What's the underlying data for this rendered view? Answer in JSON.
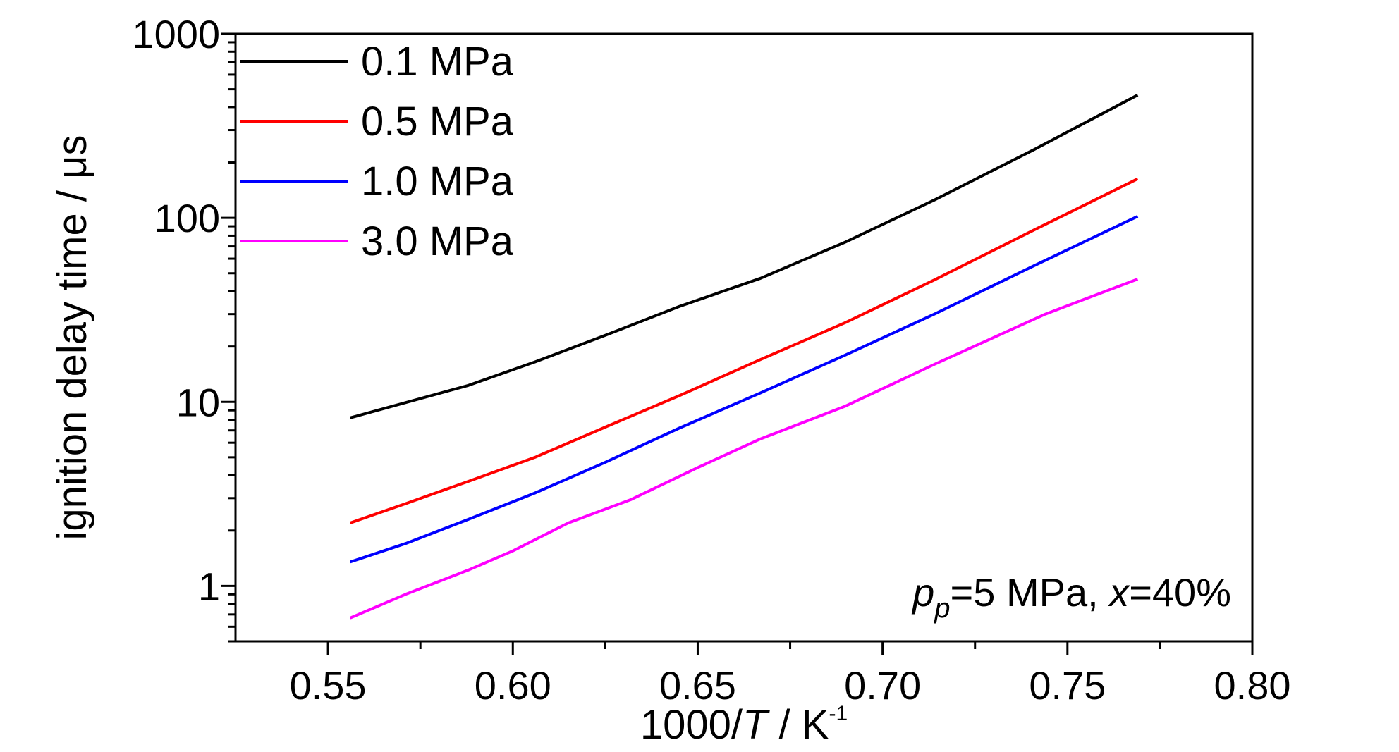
{
  "chart_data": {
    "type": "line",
    "xlabel": {
      "prefix": "1000/",
      "italic": "T",
      "unit": " / K",
      "sup": "-1"
    },
    "ylabel": "ignition delay time / μs",
    "xlim": [
      0.525,
      0.8
    ],
    "ylim": [
      0.5,
      1000
    ],
    "yscale": "log",
    "x_ticks": [
      "0.55",
      "0.60",
      "0.65",
      "0.70",
      "0.75",
      "0.80"
    ],
    "x_tick_values": [
      0.55,
      0.6,
      0.65,
      0.7,
      0.75,
      0.8
    ],
    "y_ticks": [
      "1",
      "10",
      "100",
      "1000"
    ],
    "y_tick_values": [
      1,
      10,
      100,
      1000
    ],
    "grid": false,
    "legend": "top-left",
    "annotation": {
      "p": "p",
      "sub": "p",
      "mid": "=5 MPa, ",
      "x": "x",
      "tail": "=40%"
    },
    "series": [
      {
        "name": "0.1 MPa",
        "color": "#000000",
        "x": [
          0.556,
          0.588,
          0.606,
          0.625,
          0.645,
          0.667,
          0.69,
          0.714,
          0.741,
          0.769
        ],
        "y": [
          8.2,
          12.3,
          16.5,
          23,
          33,
          47,
          74,
          125,
          235,
          465
        ]
      },
      {
        "name": "0.5 MPa",
        "color": "#ff0000",
        "x": [
          0.556,
          0.571,
          0.588,
          0.606,
          0.625,
          0.645,
          0.667,
          0.69,
          0.714,
          0.741,
          0.769
        ],
        "y": [
          2.2,
          2.8,
          3.7,
          5.0,
          7.3,
          10.8,
          17,
          27,
          46,
          86,
          163
        ]
      },
      {
        "name": "1.0 MPa",
        "color": "#0000ff",
        "x": [
          0.556,
          0.571,
          0.588,
          0.606,
          0.625,
          0.645,
          0.667,
          0.69,
          0.714,
          0.741,
          0.769
        ],
        "y": [
          1.35,
          1.7,
          2.3,
          3.2,
          4.7,
          7.2,
          11.2,
          18,
          30,
          55,
          102
        ]
      },
      {
        "name": "3.0 MPa",
        "color": "#ff00ff",
        "x": [
          0.556,
          0.571,
          0.588,
          0.6,
          0.615,
          0.632,
          0.65,
          0.667,
          0.69,
          0.714,
          0.744,
          0.769
        ],
        "y": [
          0.67,
          0.9,
          1.22,
          1.55,
          2.2,
          2.95,
          4.4,
          6.3,
          9.5,
          16,
          30,
          46.5
        ]
      }
    ]
  }
}
